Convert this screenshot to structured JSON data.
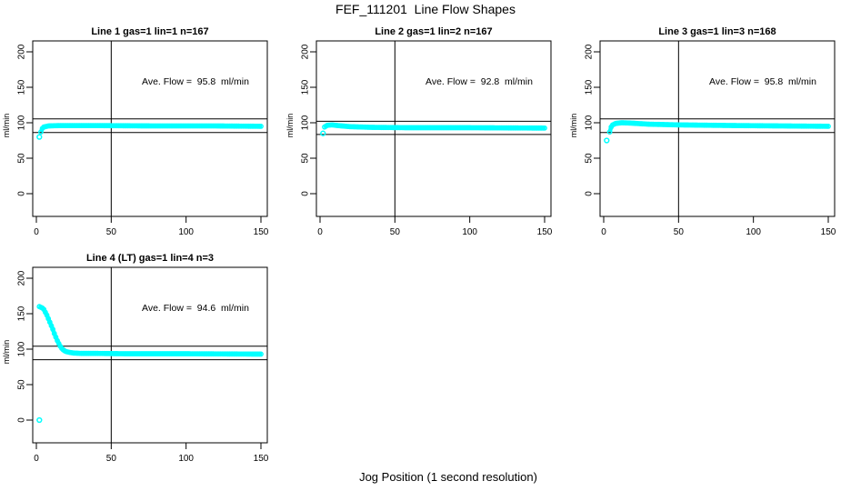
{
  "figure": {
    "title": "FEF_111201  Line Flow Shapes",
    "xlabel": "Jog Position (1 second resolution)"
  },
  "chart_data": {
    "type": "scatter",
    "title": "FEF_111201  Line Flow Shapes",
    "xlabel": "Jog Position (1 second resolution)",
    "ylabel": "ml/min",
    "point_color": "#00FFFF",
    "axis_color": "#000000",
    "background": "#FFFFFF",
    "grid": false,
    "legend": "none",
    "xticks": [
      0,
      50,
      100,
      150
    ],
    "yticks": [
      0,
      50,
      100,
      150,
      200
    ],
    "xlim": [
      -3,
      155
    ],
    "ylim": [
      -32,
      215
    ],
    "vline_x": 50,
    "x_resolution_seconds": 1,
    "panels": [
      {
        "title": "Line 1 gas=1 lin=1 n=167",
        "n": 167,
        "ave_flow": 95.8,
        "annotation": "Ave. Flow =  95.8  ml/min",
        "ref_lines": [
          105.4,
          86.2
        ],
        "outliers": [
          [
            2,
            80
          ]
        ],
        "series_keypoints": [
          [
            3,
            87
          ],
          [
            4,
            92
          ],
          [
            5,
            94
          ],
          [
            8,
            95.5
          ],
          [
            15,
            96
          ],
          [
            40,
            96
          ],
          [
            80,
            95.5
          ],
          [
            120,
            95.5
          ],
          [
            150,
            95
          ]
        ]
      },
      {
        "title": "Line 2 gas=1 lin=2 n=167",
        "n": 167,
        "ave_flow": 92.8,
        "annotation": "Ave. Flow =  92.8  ml/min",
        "ref_lines": [
          102.1,
          83.5
        ],
        "outliers": [
          [
            2,
            85
          ]
        ],
        "series_keypoints": [
          [
            3,
            94
          ],
          [
            5,
            96.5
          ],
          [
            8,
            97
          ],
          [
            12,
            96
          ],
          [
            20,
            94.5
          ],
          [
            35,
            93.5
          ],
          [
            60,
            93
          ],
          [
            100,
            93
          ],
          [
            150,
            92.5
          ]
        ]
      },
      {
        "title": "Line 3 gas=1 lin=3 n=168",
        "n": 168,
        "ave_flow": 95.8,
        "annotation": "Ave. Flow =  95.8  ml/min",
        "ref_lines": [
          105.4,
          86.2
        ],
        "outliers": [
          [
            2,
            75
          ]
        ],
        "series_keypoints": [
          [
            4,
            87
          ],
          [
            5,
            94
          ],
          [
            6,
            97
          ],
          [
            8,
            99
          ],
          [
            12,
            100
          ],
          [
            18,
            99.5
          ],
          [
            30,
            98
          ],
          [
            50,
            97
          ],
          [
            90,
            96
          ],
          [
            150,
            95
          ]
        ]
      },
      {
        "title": "Line 4 (LT) gas=1 lin=4 n=3",
        "n": 3,
        "ave_flow": 94.6,
        "annotation": "Ave. Flow =  94.6  ml/min",
        "ref_lines": [
          104.1,
          85.1
        ],
        "outliers": [
          [
            2,
            0
          ]
        ],
        "series_keypoints": [
          [
            2,
            160
          ],
          [
            3,
            159
          ],
          [
            4,
            158
          ],
          [
            5,
            156
          ],
          [
            6,
            152
          ],
          [
            7,
            148
          ],
          [
            8,
            143
          ],
          [
            9,
            138
          ],
          [
            10,
            133
          ],
          [
            11,
            128
          ],
          [
            12,
            122
          ],
          [
            13,
            117
          ],
          [
            14,
            112
          ],
          [
            15,
            108
          ],
          [
            16,
            104
          ],
          [
            17,
            101
          ],
          [
            18,
            99
          ],
          [
            19,
            97.5
          ],
          [
            20,
            96.5
          ],
          [
            22,
            95.5
          ],
          [
            25,
            94.5
          ],
          [
            30,
            94
          ],
          [
            40,
            94
          ],
          [
            60,
            93.5
          ],
          [
            100,
            93.5
          ],
          [
            150,
            93
          ]
        ]
      }
    ]
  }
}
